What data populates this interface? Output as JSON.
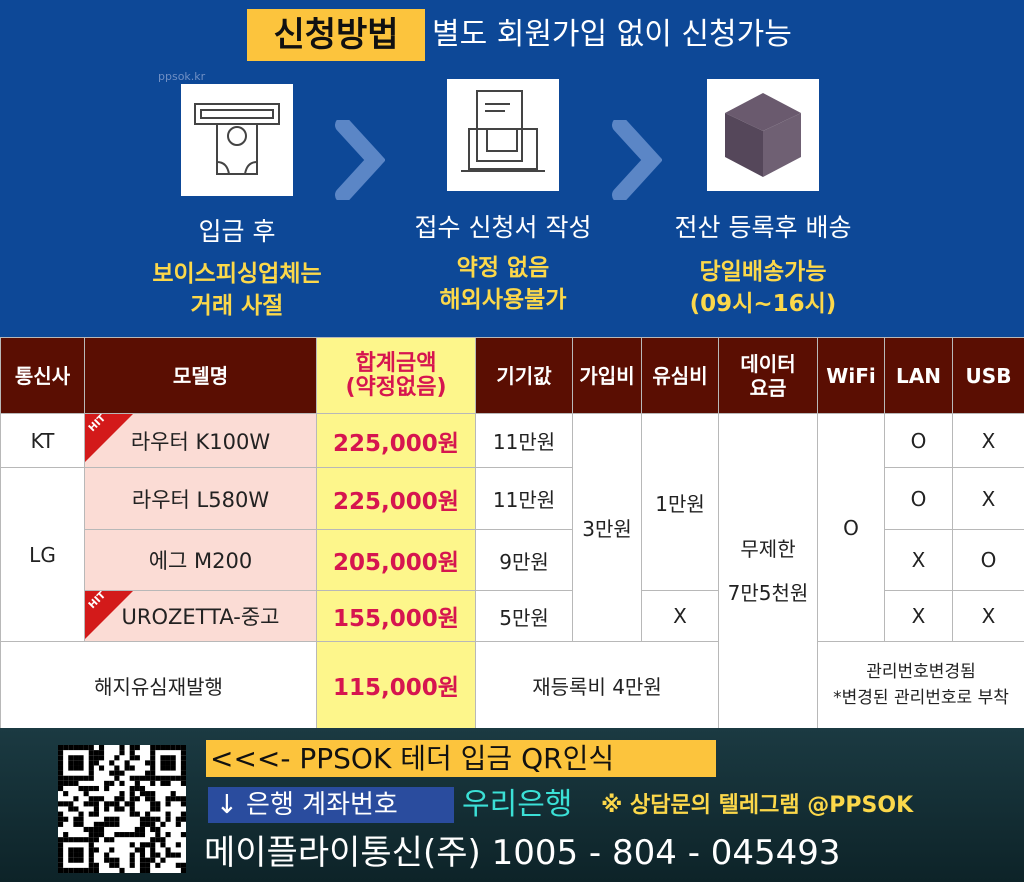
{
  "header": {
    "badge": "신청방법",
    "subtitle": "별도 회원가입 없이 신청가능",
    "watermark": "ppsok.kr"
  },
  "steps": [
    {
      "icon": "atm-cash-icon",
      "title": "입금 후",
      "note1": "보이스피싱업체는",
      "note2": "거래 사절"
    },
    {
      "icon": "laptop-form-icon",
      "title": "접수 신청서 작성",
      "note1": "약정 없음",
      "note2": "해외사용불가"
    },
    {
      "icon": "box-icon",
      "title": "전산 등록후 배송",
      "note1": "당일배송가능",
      "note2": "(09시~16시)"
    }
  ],
  "colors": {
    "top_bg": "#0d4897",
    "header_bg": "#5a0e02",
    "price_bg": "#fdf68b",
    "price_text": "#d6154f",
    "model_bg": "#fbdcd5",
    "hit": "#d31a1a",
    "badge": "#fcc43d"
  },
  "table": {
    "headers": [
      "통신사",
      "모델명",
      "합계금액",
      "(약정없음)",
      "기기값",
      "가입비",
      "유심비",
      "데이터",
      "요금",
      "WiFi",
      "LAN",
      "USB"
    ],
    "hit_label": "HIT",
    "rows": [
      {
        "carrier": "KT",
        "model": "라우터 K100W",
        "hit": true,
        "price": "225,000원",
        "device": "11만원",
        "lan": "O",
        "usb": "X"
      },
      {
        "carrier": "LG",
        "model": "라우터 L580W",
        "hit": false,
        "price": "225,000원",
        "device": "11만원",
        "lan": "O",
        "usb": "X"
      },
      {
        "model": "에그 M200",
        "hit": false,
        "price": "205,000원",
        "device": "9만원",
        "lan": "X",
        "usb": "O"
      },
      {
        "model": "UROZETTA-중고",
        "hit": true,
        "price": "155,000원",
        "device": "5만원",
        "sim": "X",
        "lan": "X",
        "usb": "X"
      }
    ],
    "join_fee": "3만원",
    "sim_fee": "1만원",
    "data_1": "무제한",
    "data_2": "7만5천원",
    "wifi": "O",
    "reissue": {
      "label": "해지유심재발행",
      "price": "115,000원",
      "fee": "재등록비 4만원",
      "note1": "관리번호변경됨",
      "note2": "*변경된 관리번호로 부착"
    }
  },
  "footer": {
    "qr_text": "<<<- PPSOK 테더 입금 QR인식",
    "bank_label": "↓ 은행 계좌번호",
    "bank_name": "우리은행",
    "telegram": "※ 상담문의 텔레그램 @PPSOK",
    "account": "메이플라이통신(주) 1005 - 804 - 045493"
  }
}
